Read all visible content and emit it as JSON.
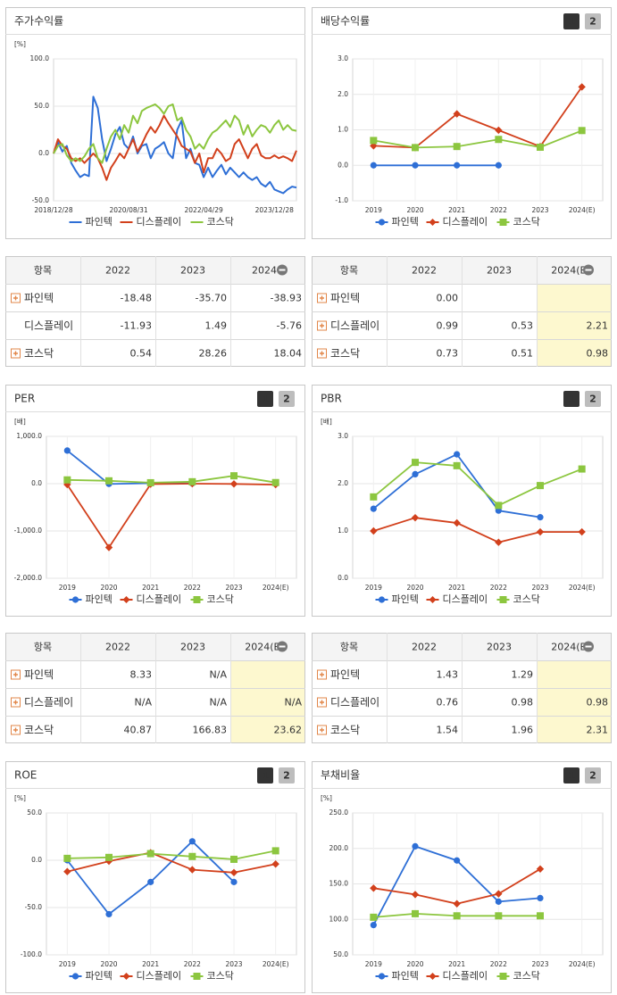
{
  "chart_data": [
    {
      "type": "line",
      "title": "주가수익률",
      "unit": "[%]",
      "categories": [
        "2018/12/28",
        null,
        null,
        null,
        null,
        null,
        null,
        null,
        null,
        null,
        null,
        null,
        null,
        null,
        null,
        null,
        null,
        "2020/08/31",
        null,
        null,
        null,
        null,
        null,
        null,
        null,
        null,
        null,
        null,
        null,
        null,
        null,
        null,
        null,
        null,
        "2022/04/29",
        null,
        null,
        null,
        null,
        null,
        null,
        null,
        null,
        null,
        null,
        null,
        null,
        null,
        null,
        null,
        "2023/12/28",
        null,
        null,
        null,
        null,
        null
      ],
      "ylim": [
        -50,
        100
      ],
      "yticks": [
        {
          "value": -50,
          "label": "-50.0"
        },
        {
          "value": 0,
          "label": "0.0"
        },
        {
          "value": 50,
          "label": "50.0"
        },
        {
          "value": 100,
          "label": "100.0"
        }
      ],
      "series": [
        {
          "name": "파인텍",
          "color": "#2e6fd6",
          "values": [
            0,
            12,
            2,
            8,
            -10,
            -18,
            -25,
            -22,
            -24,
            60,
            48,
            15,
            -8,
            5,
            20,
            28,
            10,
            5,
            18,
            0,
            8,
            10,
            -5,
            5,
            8,
            12,
            0,
            -5,
            25,
            35,
            -5,
            5,
            -10,
            -12,
            -25,
            -15,
            -25,
            -18,
            -12,
            -22,
            -15,
            -20,
            -25,
            -20,
            -25,
            -28,
            -25,
            -32,
            -35,
            -30,
            -38,
            -40,
            -42,
            -38,
            -35,
            -36
          ]
        },
        {
          "name": "디스플레이",
          "color": "#d2401c",
          "values": [
            0,
            15,
            8,
            5,
            -5,
            -8,
            -5,
            -10,
            -5,
            0,
            -5,
            -15,
            -28,
            -15,
            -8,
            0,
            -5,
            5,
            15,
            2,
            10,
            20,
            28,
            22,
            30,
            40,
            32,
            25,
            18,
            8,
            5,
            2,
            -10,
            0,
            -20,
            -5,
            -5,
            5,
            0,
            -8,
            -5,
            10,
            15,
            5,
            -5,
            5,
            10,
            -2,
            -5,
            -5,
            -2,
            -5,
            -3,
            -5,
            -8,
            3
          ]
        },
        {
          "name": "코스닥",
          "color": "#8cc63f",
          "values": [
            0,
            8,
            10,
            -2,
            -8,
            -5,
            -8,
            -3,
            5,
            10,
            -5,
            -10,
            5,
            18,
            25,
            15,
            30,
            22,
            40,
            32,
            45,
            48,
            50,
            52,
            48,
            42,
            50,
            52,
            35,
            38,
            25,
            18,
            5,
            10,
            5,
            15,
            22,
            25,
            30,
            35,
            28,
            40,
            35,
            20,
            30,
            18,
            25,
            30,
            28,
            22,
            30,
            35,
            25,
            30,
            25,
            24
          ]
        }
      ]
    },
    {
      "type": "line",
      "title": "배당수익률",
      "unit": null,
      "buttons": [
        "1",
        "2"
      ],
      "categories": [
        "2019",
        "2020",
        "2021",
        "2022",
        "2023",
        "2024(E)"
      ],
      "ylim": [
        -1,
        3
      ],
      "yticks": [
        {
          "value": -1,
          "label": "-1.0"
        },
        {
          "value": 0,
          "label": "0.0"
        },
        {
          "value": 1,
          "label": "1.0"
        },
        {
          "value": 2,
          "label": "2.0"
        },
        {
          "value": 3,
          "label": "3.0"
        }
      ],
      "series": [
        {
          "name": "파인텍",
          "color": "#2e6fd6",
          "marker": "circle",
          "values": [
            0,
            0,
            0,
            0,
            null,
            null
          ]
        },
        {
          "name": "디스플레이",
          "color": "#d2401c",
          "marker": "diamond",
          "values": [
            0.55,
            0.5,
            1.45,
            0.99,
            0.53,
            2.21
          ]
        },
        {
          "name": "코스닥",
          "color": "#8cc63f",
          "marker": "square",
          "values": [
            0.7,
            0.5,
            0.53,
            0.73,
            0.51,
            0.98
          ]
        }
      ]
    },
    {
      "type": "line",
      "title": "PER",
      "unit": "[배]",
      "buttons": [
        "1",
        "2"
      ],
      "categories": [
        "2019",
        "2020",
        "2021",
        "2022",
        "2023",
        "2024(E)"
      ],
      "ylim": [
        -2000,
        1000
      ],
      "yticks": [
        {
          "value": -2000,
          "label": "-2,000.0"
        },
        {
          "value": -1000,
          "label": "-1,000.0"
        },
        {
          "value": 0,
          "label": "0.0"
        },
        {
          "value": 1000,
          "label": "1,000.0"
        }
      ],
      "series": [
        {
          "name": "파인텍",
          "color": "#2e6fd6",
          "marker": "circle",
          "values": [
            700,
            -5,
            10,
            8.33,
            null,
            null
          ]
        },
        {
          "name": "디스플레이",
          "color": "#d2401c",
          "marker": "diamond",
          "values": [
            -20,
            -1350,
            -10,
            0,
            -5,
            -20
          ]
        },
        {
          "name": "코스닥",
          "color": "#8cc63f",
          "marker": "square",
          "values": [
            80,
            60,
            20,
            40.87,
            166.83,
            23.62
          ]
        }
      ]
    },
    {
      "type": "line",
      "title": "PBR",
      "unit": "[배]",
      "buttons": [
        "1",
        "2"
      ],
      "categories": [
        "2019",
        "2020",
        "2021",
        "2022",
        "2023",
        "2024(E)"
      ],
      "ylim": [
        0,
        3
      ],
      "yticks": [
        {
          "value": 0,
          "label": "0.0"
        },
        {
          "value": 1,
          "label": "1.0"
        },
        {
          "value": 2,
          "label": "2.0"
        },
        {
          "value": 3,
          "label": "3.0"
        }
      ],
      "series": [
        {
          "name": "파인텍",
          "color": "#2e6fd6",
          "marker": "circle",
          "values": [
            1.47,
            2.2,
            2.62,
            1.43,
            1.29,
            null
          ]
        },
        {
          "name": "디스플레이",
          "color": "#d2401c",
          "marker": "diamond",
          "values": [
            1.0,
            1.28,
            1.17,
            0.76,
            0.98,
            0.98
          ]
        },
        {
          "name": "코스닥",
          "color": "#8cc63f",
          "marker": "square",
          "values": [
            1.72,
            2.45,
            2.38,
            1.54,
            1.96,
            2.31
          ]
        }
      ]
    },
    {
      "type": "line",
      "title": "ROE",
      "unit": "[%]",
      "buttons": [
        "1",
        "2"
      ],
      "categories": [
        "2019",
        "2020",
        "2021",
        "2022",
        "2023",
        "2024(E)"
      ],
      "ylim": [
        -100,
        50
      ],
      "yticks": [
        {
          "value": -100,
          "label": "-100.0"
        },
        {
          "value": -50,
          "label": "-50.0"
        },
        {
          "value": 0,
          "label": "0.0"
        },
        {
          "value": 50,
          "label": "50.0"
        }
      ],
      "series": [
        {
          "name": "파인텍",
          "color": "#2e6fd6",
          "marker": "circle",
          "values": [
            0,
            -57,
            -23,
            20,
            -23,
            null
          ]
        },
        {
          "name": "디스플레이",
          "color": "#d2401c",
          "marker": "diamond",
          "values": [
            -12,
            -1,
            8,
            -10,
            -13,
            -4
          ]
        },
        {
          "name": "코스닥",
          "color": "#8cc63f",
          "marker": "square",
          "values": [
            2,
            3,
            7,
            4,
            1,
            10
          ]
        }
      ]
    },
    {
      "type": "line",
      "title": "부채비율",
      "unit": "[%]",
      "buttons": [
        "1",
        "2"
      ],
      "categories": [
        "2019",
        "2020",
        "2021",
        "2022",
        "2023",
        "2024(E)"
      ],
      "ylim": [
        50,
        250
      ],
      "yticks": [
        {
          "value": 50,
          "label": "50.0"
        },
        {
          "value": 100,
          "label": "100.0"
        },
        {
          "value": 150,
          "label": "150.0"
        },
        {
          "value": 200,
          "label": "200.0"
        },
        {
          "value": 250,
          "label": "250.0"
        }
      ],
      "series": [
        {
          "name": "파인텍",
          "color": "#2e6fd6",
          "marker": "circle",
          "values": [
            92,
            203,
            183,
            125,
            130,
            null
          ]
        },
        {
          "name": "디스플레이",
          "color": "#d2401c",
          "marker": "diamond",
          "values": [
            144,
            135,
            122,
            136,
            171,
            null
          ]
        },
        {
          "name": "코스닥",
          "color": "#8cc63f",
          "marker": "square",
          "values": [
            103,
            108,
            105,
            105,
            105,
            null
          ]
        }
      ]
    }
  ],
  "tables": [
    {
      "header": [
        "항목",
        "2022",
        "2023",
        "2024"
      ],
      "rows": [
        {
          "expandable": true,
          "cells": [
            "파인텍",
            "-18.48",
            "-35.70",
            "-38.93"
          ]
        },
        {
          "expandable": false,
          "cells": [
            "디스플레이",
            "-11.93",
            "1.49",
            "-5.76"
          ]
        },
        {
          "expandable": true,
          "cells": [
            "코스닥",
            "0.54",
            "28.26",
            "18.04"
          ]
        }
      ]
    },
    {
      "header": [
        "항목",
        "2022",
        "2023",
        "2024(E)"
      ],
      "highlight_color": "#fdf8cf",
      "rows": [
        {
          "expandable": true,
          "cells": [
            "파인텍",
            "0.00",
            null,
            null
          ]
        },
        {
          "expandable": true,
          "cells": [
            "디스플레이",
            "0.99",
            "0.53",
            "2.21"
          ]
        },
        {
          "expandable": true,
          "cells": [
            "코스닥",
            "0.73",
            "0.51",
            "0.98"
          ]
        }
      ]
    },
    {
      "header": [
        "항목",
        "2022",
        "2023",
        "2024(E)"
      ],
      "highlight_color": "#fdf8cf",
      "rows": [
        {
          "expandable": true,
          "cells": [
            "파인텍",
            "8.33",
            "N/A",
            null
          ]
        },
        {
          "expandable": true,
          "cells": [
            "디스플레이",
            "N/A",
            "N/A",
            "N/A"
          ]
        },
        {
          "expandable": true,
          "cells": [
            "코스닥",
            "40.87",
            "166.83",
            "23.62"
          ]
        }
      ]
    },
    {
      "header": [
        "항목",
        "2022",
        "2023",
        "2024(E)"
      ],
      "highlight_color": "#fdf8cf",
      "rows": [
        {
          "expandable": true,
          "cells": [
            "파인텍",
            "1.43",
            "1.29",
            null
          ]
        },
        {
          "expandable": true,
          "cells": [
            "디스플레이",
            "0.76",
            "0.98",
            "0.98"
          ]
        },
        {
          "expandable": true,
          "cells": [
            "코스닥",
            "1.54",
            "1.96",
            "2.31"
          ]
        }
      ]
    }
  ]
}
